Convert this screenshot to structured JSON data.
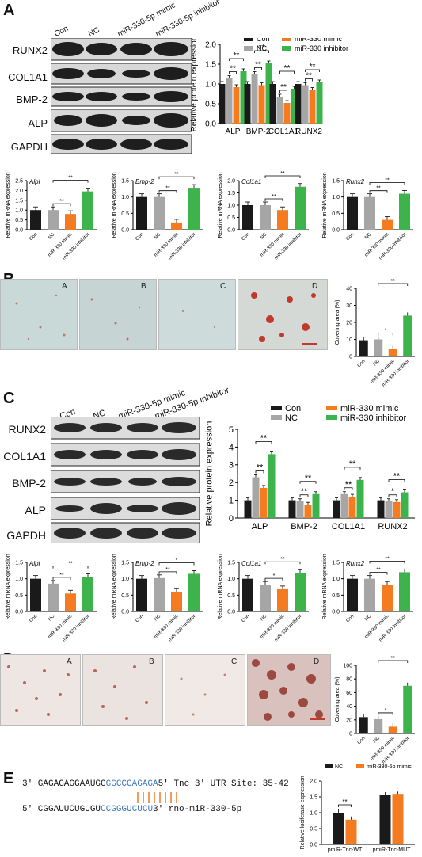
{
  "panels": {
    "A": "A",
    "B": "B",
    "C": "C",
    "D": "D",
    "E": "E"
  },
  "colors": {
    "con": "#1a1a1a",
    "nc": "#a6a6a6",
    "mimic": "#f47b20",
    "inhibitor": "#3cb44b",
    "e_nc": "#1a1a1a",
    "e_mimic": "#f47b20"
  },
  "blotA": {
    "lanes": [
      "Con",
      "NC",
      "miR-330-5p mimic",
      "miR-330-5p inhibitor"
    ],
    "rows": [
      "RUNX2",
      "COL1A1",
      "BMP-2",
      "ALP",
      "GAPDH"
    ]
  },
  "blotC": {
    "lanes": [
      "Con",
      "NC",
      "miR-330-5p mimic",
      "miR-330-5p inhibitor"
    ],
    "rows": [
      "RUNX2",
      "COL1A1",
      "BMP-2",
      "ALP",
      "GAPDH"
    ]
  },
  "micrographs": [
    "A",
    "B",
    "C",
    "D"
  ],
  "chart_data": [
    {
      "id": "A_protein",
      "type": "bar",
      "ylabel": "Relative protein expression",
      "categories": [
        "ALP",
        "BMP-2",
        "COL1A1",
        "RUNX2"
      ],
      "legend": [
        "Con",
        "NC",
        "miR-330 mimic",
        "miR-330 inhibitor"
      ],
      "ylim": [
        0,
        2.0
      ],
      "yticks": [
        "0.0",
        "0.5",
        "1.0",
        "1.5",
        "2.0"
      ],
      "series": [
        {
          "name": "Con",
          "values": [
            1.0,
            1.0,
            1.0,
            1.0
          ]
        },
        {
          "name": "NC",
          "values": [
            1.15,
            1.25,
            0.68,
            0.97
          ]
        },
        {
          "name": "miR-330 mimic",
          "values": [
            0.92,
            0.97,
            0.52,
            0.85
          ]
        },
        {
          "name": "miR-330 inhibitor",
          "values": [
            1.32,
            1.52,
            0.88,
            1.04
          ]
        }
      ]
    },
    {
      "id": "A_alpl",
      "type": "bar",
      "title": "Alpl",
      "ylabel": "Relative mRNA expression",
      "categories": [
        "Con",
        "NC",
        "miR-330 mimic",
        "miR-330 inhibitor"
      ],
      "ylim": [
        0,
        2.5
      ],
      "yticks": [
        "0.0",
        "0.5",
        "1.0",
        "1.5",
        "2.0",
        "2.5"
      ],
      "values": [
        1.0,
        1.0,
        0.8,
        1.95
      ]
    },
    {
      "id": "A_bmp2",
      "type": "bar",
      "title": "Bmp-2",
      "ylabel": "Relative mRNA expression",
      "categories": [
        "Con",
        "NC",
        "miR-330 mimic",
        "miR-330 inhibitor"
      ],
      "ylim": [
        0,
        1.5
      ],
      "yticks": [
        "0.0",
        "0.5",
        "1.0",
        "1.5"
      ],
      "values": [
        1.0,
        1.0,
        0.22,
        1.28
      ]
    },
    {
      "id": "A_col1a1",
      "type": "bar",
      "title": "Col1a1",
      "ylabel": "Relative mRNA expression",
      "categories": [
        "Con",
        "NC",
        "miR-330 mimic",
        "miR-330 inhibitor"
      ],
      "ylim": [
        0,
        2.0
      ],
      "yticks": [
        "0.0",
        "0.5",
        "1.0",
        "1.5",
        "2.0"
      ],
      "values": [
        1.0,
        1.0,
        0.8,
        1.75
      ]
    },
    {
      "id": "A_runx2",
      "type": "bar",
      "title": "Runx2",
      "ylabel": "Relative mRNA expression",
      "categories": [
        "Con",
        "NC",
        "miR-330 mimic",
        "miR-330 inhibitor"
      ],
      "ylim": [
        0,
        1.5
      ],
      "yticks": [
        "0.0",
        "0.5",
        "1.0",
        "1.5"
      ],
      "values": [
        1.0,
        1.0,
        0.3,
        1.1
      ]
    },
    {
      "id": "B_area",
      "type": "bar",
      "ylabel": "Covering area (%)",
      "categories": [
        "Con",
        "NC",
        "miR-330 mimic",
        "miR-330 inhibitor"
      ],
      "ylim": [
        0,
        40
      ],
      "yticks": [
        "0",
        "10",
        "20",
        "30",
        "40"
      ],
      "values": [
        9.5,
        10,
        4.5,
        24
      ]
    },
    {
      "id": "C_protein",
      "type": "bar",
      "ylabel": "Relative protein expression",
      "categories": [
        "ALP",
        "BMP-2",
        "COL1A1",
        "RUNX2"
      ],
      "legend": [
        "Con",
        "NC",
        "miR-330 mimic",
        "miR-330 inhibitor"
      ],
      "ylim": [
        0,
        5
      ],
      "yticks": [
        "0",
        "1",
        "2",
        "3",
        "4",
        "5"
      ],
      "series": [
        {
          "name": "Con",
          "values": [
            1.0,
            1.0,
            1.0,
            1.0
          ]
        },
        {
          "name": "NC",
          "values": [
            2.3,
            0.95,
            1.35,
            0.95
          ]
        },
        {
          "name": "miR-330 mimic",
          "values": [
            1.7,
            0.75,
            1.2,
            0.9
          ]
        },
        {
          "name": "miR-330 inhibitor",
          "values": [
            3.6,
            1.35,
            2.15,
            1.45
          ]
        }
      ]
    },
    {
      "id": "C_alpl",
      "type": "bar",
      "title": "Alpl",
      "ylabel": "Relative mRNA expression",
      "categories": [
        "Con",
        "NC",
        "miR-330 mimic",
        "miR-330 inhibitor"
      ],
      "ylim": [
        0,
        1.5
      ],
      "yticks": [
        "0.0",
        "0.5",
        "1.0",
        "1.5"
      ],
      "values": [
        1.0,
        0.85,
        0.55,
        1.05
      ]
    },
    {
      "id": "C_bmp2",
      "type": "bar",
      "title": "Bmp-2",
      "ylabel": "Relative mRNA expression",
      "categories": [
        "Con",
        "NC",
        "miR-330 mimic",
        "miR-330 inhibitor"
      ],
      "ylim": [
        0,
        1.5
      ],
      "yticks": [
        "0.0",
        "0.5",
        "1.0",
        "1.5"
      ],
      "values": [
        1.0,
        1.02,
        0.6,
        1.15
      ]
    },
    {
      "id": "C_col1a1",
      "type": "bar",
      "title": "Col1a1",
      "ylabel": "Relative mRNA expression",
      "categories": [
        "Con",
        "NC",
        "miR-330 mimic",
        "miR-330 inhibitor"
      ],
      "ylim": [
        0,
        1.5
      ],
      "yticks": [
        "0.0",
        "0.5",
        "1.0",
        "1.5"
      ],
      "values": [
        1.0,
        0.82,
        0.68,
        1.18
      ]
    },
    {
      "id": "C_runx2",
      "type": "bar",
      "title": "Runx2",
      "ylabel": "Relative mRNA expression",
      "categories": [
        "Con",
        "NC",
        "miR-330 mimic",
        "miR-330 inhibitor"
      ],
      "ylim": [
        0,
        1.5
      ],
      "yticks": [
        "0.0",
        "0.5",
        "1.0",
        "1.5"
      ],
      "values": [
        1.0,
        1.0,
        0.82,
        1.2
      ]
    },
    {
      "id": "D_area",
      "type": "bar",
      "ylabel": "Covering area (%)",
      "categories": [
        "Con",
        "NC",
        "miR-330 mimic",
        "miR-330 inhibitor"
      ],
      "ylim": [
        0,
        100
      ],
      "yticks": [
        "0",
        "20",
        "40",
        "60",
        "80",
        "100"
      ],
      "values": [
        24,
        21,
        10,
        70
      ]
    },
    {
      "id": "E_luc",
      "type": "bar",
      "ylabel": "Relative luciferase expression",
      "categories": [
        "pmiR-Tnc-WT",
        "pmiR-Tnc-MUT"
      ],
      "legend": [
        "NC",
        "miR-330-5p mimic"
      ],
      "ylim": [
        0,
        2.0
      ],
      "yticks": [
        "0.0",
        "0.5",
        "1.0",
        "1.5",
        "2.0"
      ],
      "series": [
        {
          "name": "NC",
          "values": [
            1.0,
            1.55
          ]
        },
        {
          "name": "miR-330-5p mimic",
          "values": [
            0.78,
            1.57
          ]
        }
      ]
    }
  ],
  "sigs": {
    "ss": "**",
    "s": "*"
  },
  "E_seq": {
    "top_prefix": "3'  GAGAGAGGAAUGG",
    "top_blue": "GGCCCAGAGA",
    "top_suffix": "5'  Tnc 3' UTR  Site: 35-42",
    "bot_prefix": "5'  CGGAUUCUGUGU",
    "bot_blue": "CCGGGUCUCU",
    "bot_suffix": "3'    rno-miR-330-5p"
  }
}
